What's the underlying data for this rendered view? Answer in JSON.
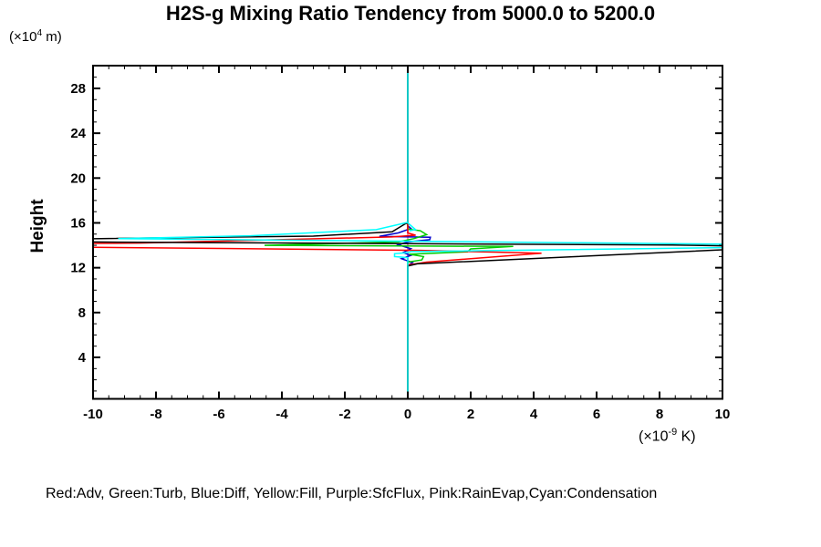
{
  "title": "H2S-g Mixing Ratio Tendency from 5000.0 to 5200.0",
  "y_axis": {
    "label": "Height",
    "unit_prefix": "(×10",
    "unit_sup": "4",
    "unit_suffix": " m)",
    "major_ticks": [
      4,
      8,
      12,
      16,
      20,
      24,
      28
    ],
    "minor_step": 1,
    "range": [
      0.3,
      30.03
    ]
  },
  "x_axis": {
    "unit_prefix": "(×10",
    "unit_sup": "-9",
    "unit_suffix": " K)",
    "major_ticks": [
      -10,
      -8,
      -6,
      -4,
      -2,
      0,
      2,
      4,
      6,
      8,
      10
    ],
    "minor_step": 0.5,
    "range": [
      -10,
      10
    ]
  },
  "legend_text": "Red:Adv, Green:Turb, Blue:Diff, Yellow:Fill, Purple:SfcFlux, Pink:RainEvap,Cyan:Condensation",
  "chart_data": {
    "type": "line",
    "xlabel_unit": "x10^-9 K",
    "ylabel": "Height (x10^4 m)",
    "xlim": [
      -10,
      10
    ],
    "ylim": [
      0.3,
      30.03
    ],
    "grid": false,
    "zero_line": {
      "x": 0,
      "color": "#00ffff"
    },
    "series": [
      {
        "name": "Fill",
        "color": "#ffff00",
        "paths": [
          [
            [
              0,
              0.3
            ],
            [
              0,
              30.03
            ]
          ]
        ]
      },
      {
        "name": "SfcFlux",
        "color": "#aa00cc",
        "paths": [
          [
            [
              0,
              0.3
            ],
            [
              0,
              30.03
            ]
          ]
        ]
      },
      {
        "name": "RainEvap",
        "color": "#ff99cc",
        "paths": [
          [
            [
              0,
              0.3
            ],
            [
              0,
              30.03
            ]
          ]
        ]
      },
      {
        "name": "Diff",
        "color": "#0000cc",
        "paths": [
          [
            [
              0,
              0.3
            ],
            [
              0,
              12.2
            ],
            [
              0.15,
              12.45
            ],
            [
              -0.2,
              12.8
            ],
            [
              0.1,
              13.1
            ],
            [
              -0.15,
              13.35
            ],
            [
              0.1,
              13.7
            ],
            [
              -0.3,
              14.05
            ],
            [
              0,
              14.3
            ],
            [
              0.7,
              14.5
            ],
            [
              0.72,
              14.72
            ],
            [
              -0.9,
              14.8
            ],
            [
              -0.3,
              15.1
            ],
            [
              0.1,
              15.5
            ],
            [
              0,
              15.75
            ],
            [
              0,
              30.03
            ]
          ]
        ]
      },
      {
        "name": "Turb",
        "color": "#00cc00",
        "paths": [
          [
            [
              0,
              0.3
            ],
            [
              0,
              12.5
            ],
            [
              0.45,
              12.7
            ],
            [
              0.5,
              13.0
            ],
            [
              0.05,
              13.2
            ],
            [
              1.9,
              13.42
            ],
            [
              2.0,
              13.68
            ],
            [
              3.35,
              13.9
            ],
            [
              -4.55,
              14.0
            ],
            [
              -0.3,
              14.3
            ],
            [
              0.2,
              14.6
            ],
            [
              0.6,
              14.95
            ],
            [
              0.4,
              15.3
            ],
            [
              0,
              15.45
            ],
            [
              0,
              30.03
            ]
          ]
        ]
      },
      {
        "name": "Adv",
        "color": "#ff0000",
        "paths": [
          [
            [
              0,
              0.3
            ],
            [
              0,
              12.25
            ],
            [
              0.6,
              12.5
            ],
            [
              4.25,
              13.3
            ],
            [
              0.4,
              13.55
            ],
            [
              -10.2,
              13.83
            ]
          ],
          [
            [
              -10.2,
              14.16
            ],
            [
              -8.5,
              14.2
            ],
            [
              -0.5,
              14.75
            ],
            [
              0.25,
              14.9
            ],
            [
              0,
              15.1
            ],
            [
              0,
              30.03
            ]
          ]
        ]
      },
      {
        "name": "Black",
        "color": "#000000",
        "paths": [
          [
            [
              0,
              0.3
            ],
            [
              0,
              12.15
            ],
            [
              0.3,
              12.35
            ],
            [
              10.2,
              13.62
            ]
          ],
          [
            [
              10.2,
              13.95
            ],
            [
              8.4,
              14.02
            ],
            [
              -10.2,
              14.3
            ]
          ],
          [
            [
              -10.2,
              14.58
            ],
            [
              -3,
              14.82
            ],
            [
              -0.5,
              15.2
            ],
            [
              -0.08,
              15.92
            ],
            [
              0,
              16.0
            ],
            [
              0,
              30.03
            ]
          ]
        ]
      },
      {
        "name": "Condensation",
        "color": "#00ffff",
        "paths": [
          [
            [
              0,
              0.3
            ],
            [
              0,
              12.9
            ],
            [
              -0.42,
              13.0
            ],
            [
              -0.42,
              13.25
            ],
            [
              0,
              13.35
            ],
            [
              0.1,
              13.44
            ],
            [
              10.2,
              13.8
            ]
          ],
          [
            [
              10.2,
              14.1
            ],
            [
              -9.2,
              14.6
            ],
            [
              -5,
              14.85
            ],
            [
              -1,
              15.4
            ],
            [
              0,
              16.05
            ],
            [
              0,
              30.03
            ]
          ],
          [
            [
              0,
              16.0
            ],
            [
              0.25,
              15.4
            ],
            [
              0.05,
              15.3
            ]
          ]
        ]
      }
    ]
  }
}
